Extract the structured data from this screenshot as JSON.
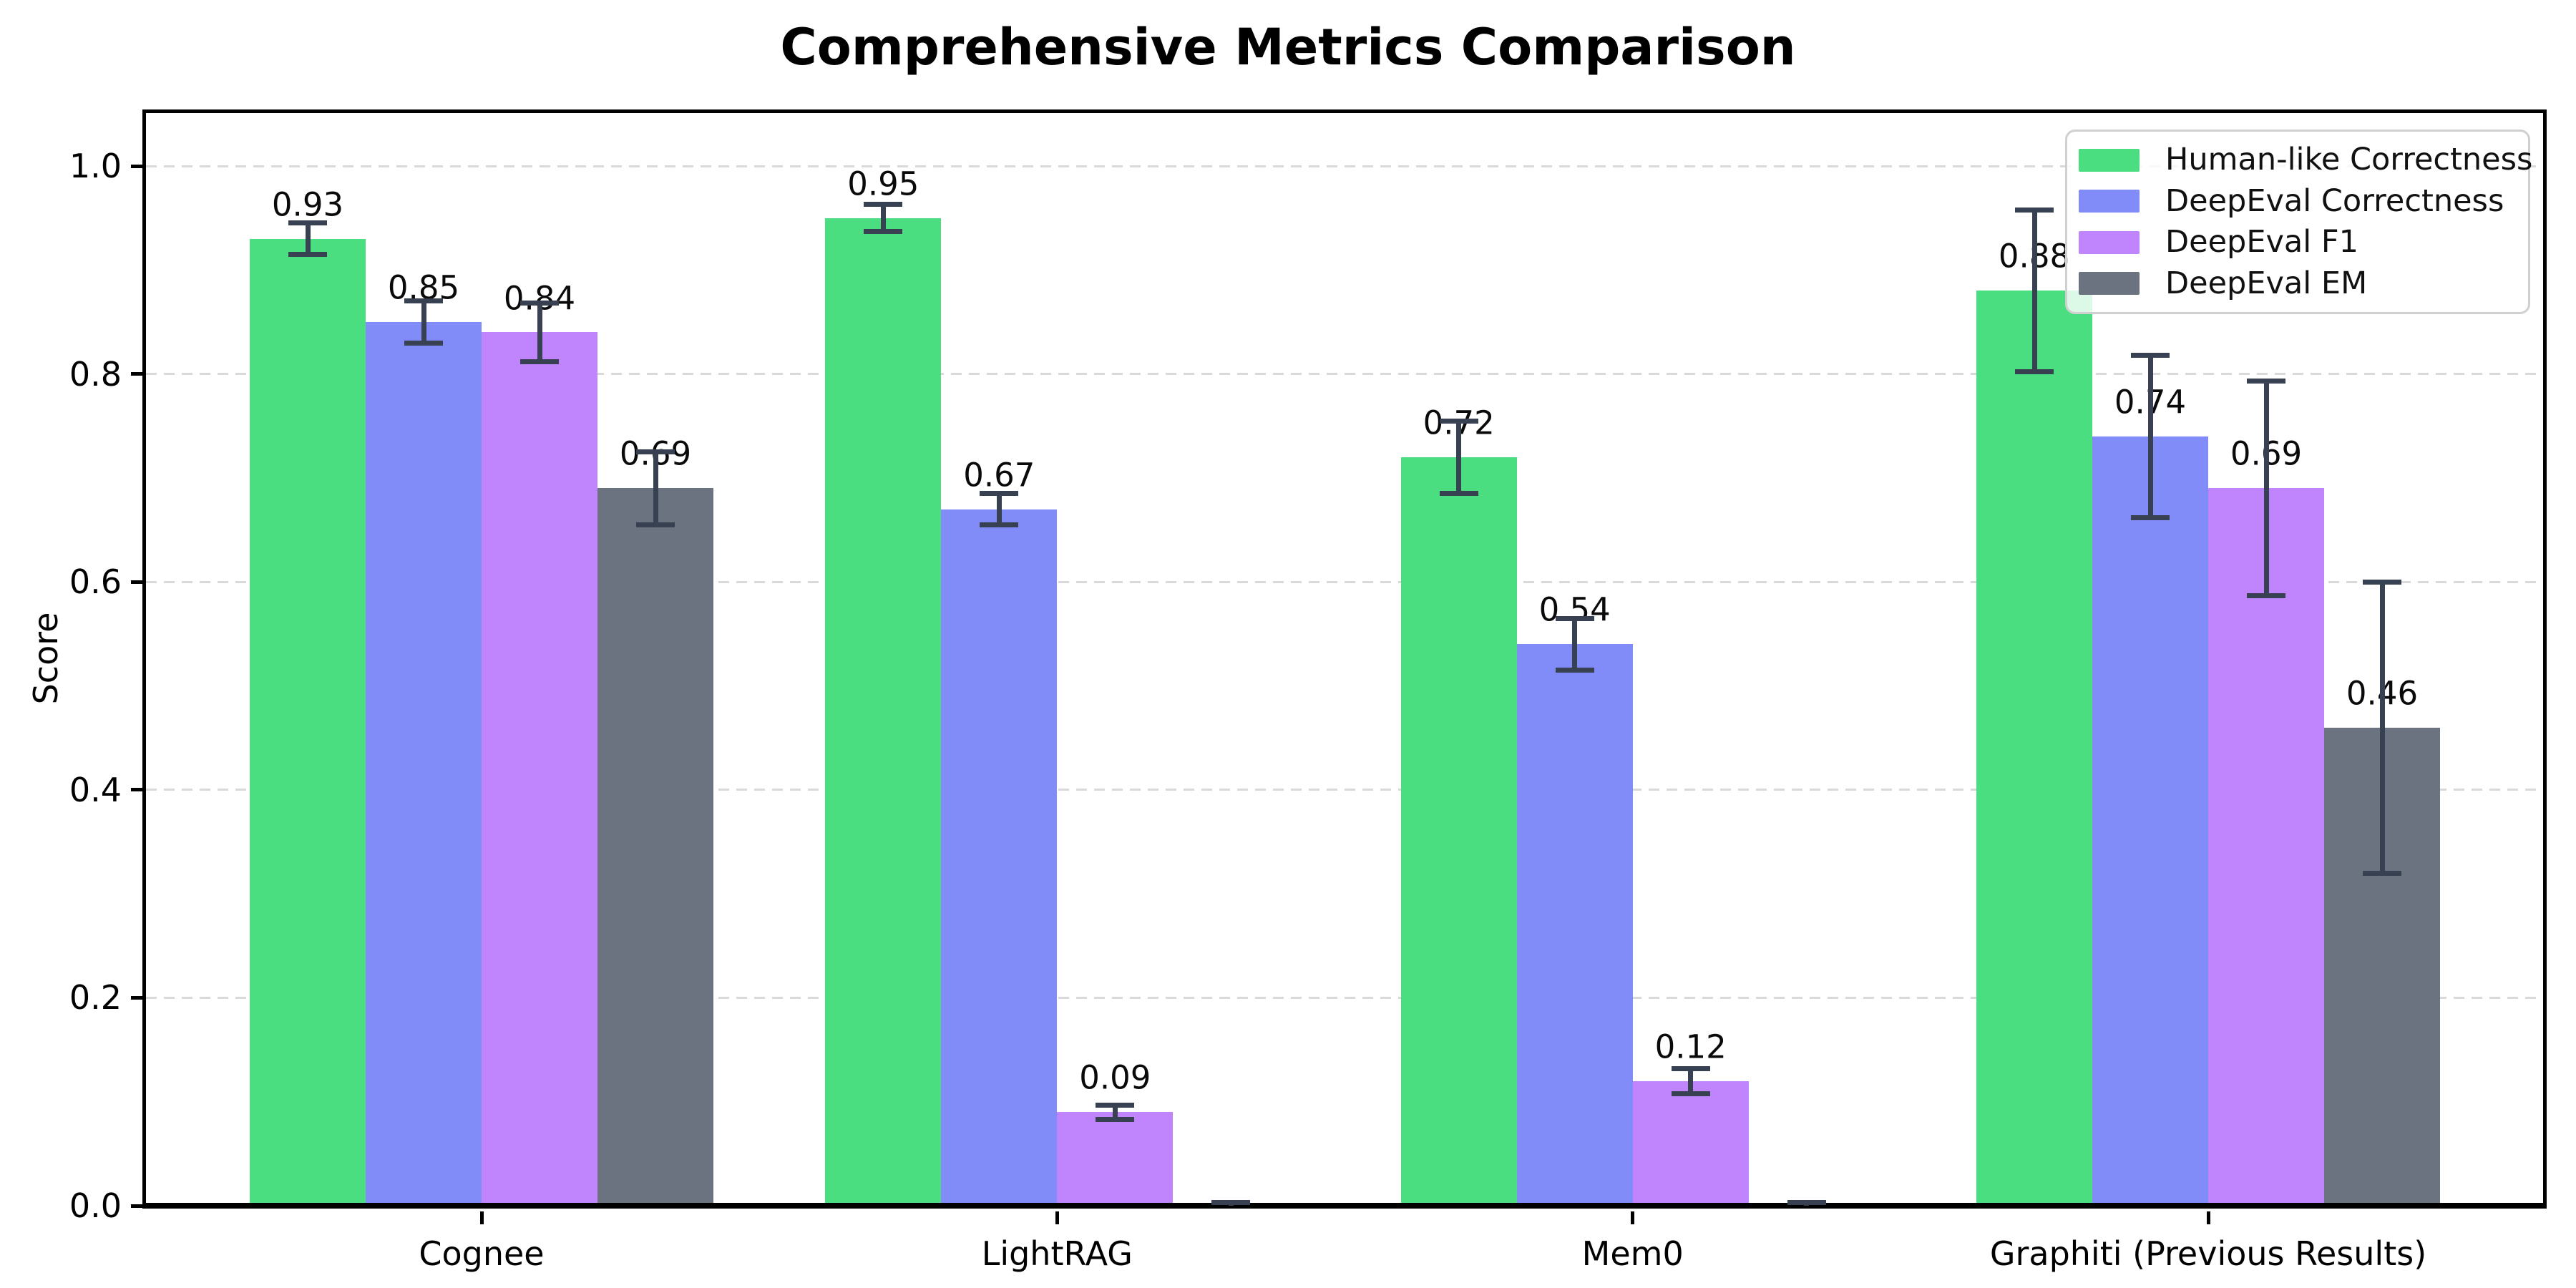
{
  "chart_data": {
    "type": "bar",
    "title": "Comprehensive Metrics Comparison",
    "ylabel": "Score",
    "xlabel": "",
    "categories": [
      "Cognee",
      "LightRAG",
      "Mem0",
      "Graphiti (Previous Results)"
    ],
    "series": [
      {
        "name": "Human-like Correctness",
        "color": "#4ade80",
        "values": [
          0.93,
          0.95,
          0.72,
          0.88
        ],
        "errors": [
          0.015,
          0.013,
          0.035,
          0.078
        ],
        "labels": [
          "0.93",
          "0.95",
          "0.72",
          "0.88"
        ]
      },
      {
        "name": "DeepEval Correctness",
        "color": "#818cf8",
        "values": [
          0.85,
          0.67,
          0.54,
          0.74
        ],
        "errors": [
          0.02,
          0.015,
          0.025,
          0.078
        ],
        "labels": [
          "0.85",
          "0.67",
          "0.54",
          "0.74"
        ]
      },
      {
        "name": "DeepEval F1",
        "color": "#c084fc",
        "values": [
          0.84,
          0.09,
          0.12,
          0.69
        ],
        "errors": [
          0.028,
          0.007,
          0.012,
          0.103
        ],
        "labels": [
          "0.84",
          "0.09",
          "0.12",
          "0.69"
        ]
      },
      {
        "name": "DeepEval EM",
        "color": "#6b7280",
        "values": [
          0.69,
          0.0,
          0.0,
          0.46
        ],
        "errors": [
          0.035,
          0.003,
          0.003,
          0.14
        ],
        "labels": [
          "0.69",
          "",
          "",
          "0.46"
        ]
      }
    ],
    "y_ticks": [
      "0.0",
      "0.2",
      "0.4",
      "0.6",
      "0.8",
      "1.0"
    ],
    "ylim": [
      0,
      1.05
    ],
    "grid": {
      "axis": "y",
      "style": "dashed",
      "color": "#d9d9d9"
    },
    "legend": {
      "position": "upper-right",
      "entries": [
        "Human-like Correctness",
        "DeepEval Correctness",
        "DeepEval F1",
        "DeepEval EM"
      ]
    },
    "error_bar_color": "#374151",
    "axis_color": "#000000"
  }
}
